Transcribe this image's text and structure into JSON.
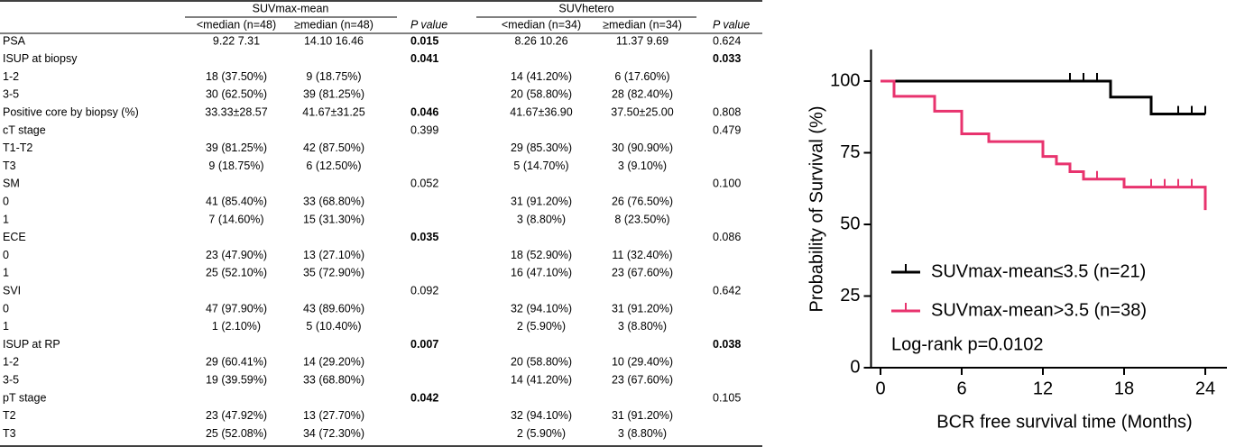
{
  "table": {
    "groups": [
      "SUVmax-mean",
      "SUVhetero"
    ],
    "columns": [
      "<median (n=48)",
      "≥median (n=48)",
      "P value",
      "<median (n=34)",
      "≥median (n=34)",
      "P value"
    ],
    "rows": [
      {
        "cells": [
          "PSA",
          "9.22 7.31",
          "14.10 16.46",
          "0.015",
          "8.26 10.26",
          "11.37 9.69",
          "0.624"
        ],
        "bold": [
          3
        ]
      },
      {
        "cells": [
          "ISUP at biopsy",
          null,
          null,
          "0.041",
          null,
          null,
          "0.033"
        ],
        "bold": [
          3,
          6
        ]
      },
      {
        "cells": [
          "1-2",
          "18 (37.50%)",
          "9 (18.75%)",
          null,
          "14 (41.20%)",
          "6 (17.60%)",
          null
        ]
      },
      {
        "cells": [
          "3-5",
          "30 (62.50%)",
          "39 (81.25%)",
          null,
          "20 (58.80%)",
          "28 (82.40%)",
          null
        ]
      },
      {
        "cells": [
          "Positive core by biopsy (%)",
          "33.33±28.57",
          "41.67±31.25",
          "0.046",
          "41.67±36.90",
          "37.50±25.00",
          "0.808"
        ],
        "bold": [
          3
        ]
      },
      {
        "cells": [
          "cT stage",
          null,
          null,
          "0.399",
          null,
          null,
          "0.479"
        ]
      },
      {
        "cells": [
          "T1-T2",
          "39 (81.25%)",
          "42 (87.50%)",
          null,
          "29 (85.30%)",
          "30 (90.90%)",
          null
        ]
      },
      {
        "cells": [
          "T3",
          "9 (18.75%)",
          "6 (12.50%)",
          null,
          "5 (14.70%)",
          "3 (9.10%)",
          null
        ]
      },
      {
        "cells": [
          "SM",
          null,
          null,
          "0.052",
          null,
          null,
          "0.100"
        ]
      },
      {
        "cells": [
          "0",
          "41 (85.40%)",
          "33 (68.80%)",
          null,
          "31 (91.20%)",
          "26 (76.50%)",
          null
        ]
      },
      {
        "cells": [
          "1",
          "7 (14.60%)",
          "15 (31.30%)",
          null,
          "3 (8.80%)",
          "8 (23.50%)",
          null
        ]
      },
      {
        "cells": [
          "ECE",
          null,
          null,
          "0.035",
          null,
          null,
          "0.086"
        ],
        "bold": [
          3
        ]
      },
      {
        "cells": [
          "0",
          "23 (47.90%)",
          "13 (27.10%)",
          null,
          "18 (52.90%)",
          "11 (32.40%)",
          null
        ]
      },
      {
        "cells": [
          "1",
          "25 (52.10%)",
          "35 (72.90%)",
          null,
          "16 (47.10%)",
          "23 (67.60%)",
          null
        ]
      },
      {
        "cells": [
          "SVI",
          null,
          null,
          "0.092",
          null,
          null,
          "0.642"
        ]
      },
      {
        "cells": [
          "0",
          "47 (97.90%)",
          "43 (89.60%)",
          null,
          "32 (94.10%)",
          "31 (91.20%)",
          null
        ]
      },
      {
        "cells": [
          "1",
          "1 (2.10%)",
          "5 (10.40%)",
          null,
          "2 (5.90%)",
          "3 (8.80%)",
          null
        ]
      },
      {
        "cells": [
          "ISUP at RP",
          null,
          null,
          "0.007",
          null,
          null,
          "0.038"
        ],
        "bold": [
          3,
          6
        ]
      },
      {
        "cells": [
          "1-2",
          "29 (60.41%)",
          "14 (29.20%)",
          null,
          "20 (58.80%)",
          "10 (29.40%)",
          null
        ]
      },
      {
        "cells": [
          "3-5",
          "19 (39.59%)",
          "33 (68.80%)",
          null,
          "14 (41.20%)",
          "23 (67.60%)",
          null
        ]
      },
      {
        "cells": [
          "pT stage",
          null,
          null,
          "0.042",
          null,
          null,
          "0.105"
        ],
        "bold": [
          3
        ]
      },
      {
        "cells": [
          "T2",
          "23 (47.92%)",
          "13 (27.70%)",
          null,
          "32 (94.10%)",
          "31 (91.20%)",
          null
        ]
      },
      {
        "cells": [
          "T3",
          "25 (52.08%)",
          "34 (72.30%)",
          null,
          "2 (5.90%)",
          "3 (8.80%)",
          null
        ]
      }
    ]
  },
  "chart_data": {
    "type": "step",
    "x_label": "BCR free survival time (Months)",
    "y_label": "Probability of Survival (%)",
    "annotation": "Log-rank p=0.0102",
    "xlim": [
      -0.7,
      25.6
    ],
    "xticks": [
      0,
      6,
      12,
      18,
      24
    ],
    "ylim": [
      0,
      111
    ],
    "yticks": [
      0,
      25,
      50,
      75,
      100
    ],
    "series": [
      {
        "name": "SUVmax-mean≤3.5 (n=21)",
        "color": "#000000",
        "x": [
          0,
          17,
          20,
          24
        ],
        "values": [
          100,
          94.4,
          88.5,
          88.5
        ],
        "censored_x": [
          14,
          15,
          16,
          22,
          23,
          24
        ],
        "censored_values": [
          100,
          100,
          100,
          88.5,
          88.5,
          88.5
        ]
      },
      {
        "name": "SUVmax-mean>3.5 (n=38)",
        "color": "#e8336e",
        "x": [
          0,
          1,
          4,
          6,
          8,
          12,
          13,
          14,
          15,
          18,
          24
        ],
        "values": [
          100,
          94.7,
          89.5,
          81.6,
          78.9,
          73.7,
          71.1,
          68.4,
          65.8,
          63.0,
          55.0
        ],
        "censored_x": [
          16,
          20,
          21,
          22,
          23
        ],
        "censored_values": [
          65.8,
          63.0,
          63.0,
          63.0,
          63.0
        ]
      }
    ]
  }
}
